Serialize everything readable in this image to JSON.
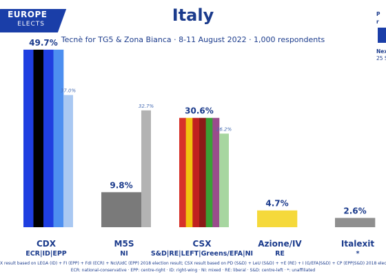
{
  "header": {
    "brand_line1": "EUROPE",
    "brand_line2": "ELECTS",
    "title": "Italy",
    "subtitle": "Tecnè for TG5 & Zona Bianca · 8-11 August 2022 · 1,000 respondents",
    "side_line1": "P",
    "side_line2": "r",
    "side_line3": "Nex",
    "side_line4": "25 S"
  },
  "footer": {
    "line1": "X result based on LEGA (ID) + FI (EPP) + FdI (ECR) + NcI/UdC (EPP) 2018 election result; CSX result based on PD (S&D) + LeU (S&D) + +E (RE) + I (G/EFA|S&D) + CP (EPP|S&D) 2018 electio",
    "line2": "ECR: national-conservative · EPP: centre-right · ID: right-wing · NI: mixed · RE: liberal · S&D: centre-left · *: unaffiliated"
  },
  "colors": {
    "brand_blue": "#1a3ea8",
    "title_blue": "#1b3b8c",
    "previous_result": "#b3b3b3"
  },
  "chart_data": {
    "type": "bar",
    "ylim": [
      0,
      52
    ],
    "groups": [
      {
        "name": "CDX",
        "group": "ECR|ID|EPP",
        "value": 49.7,
        "label": "49.7%",
        "previous": 37.0,
        "previous_label": "37.0%",
        "stripes": [
          "#1f3fe0",
          "#000000",
          "#1f3fe0",
          "#4d8ff0"
        ],
        "previous_color": "#a9c8f2"
      },
      {
        "name": "M5S",
        "group": "NI",
        "value": 9.8,
        "label": "9.8%",
        "previous": 32.7,
        "previous_label": "32.7%",
        "stripes": [
          "#7a7a7a"
        ],
        "previous_color": "#b3b3b3"
      },
      {
        "name": "CSX",
        "group": "S&D|RE|LEFT|Greens/EFA|NI",
        "value": 30.6,
        "label": "30.6%",
        "previous": 26.2,
        "previous_label": "26.2%",
        "stripes": [
          "#d7322a",
          "#f2c40f",
          "#c0211f",
          "#8c1a17",
          "#3aa035",
          "#9a4c8c"
        ],
        "previous_color": "#a7d6a0"
      },
      {
        "name": "Azione/IV",
        "group": "RE",
        "value": 4.7,
        "label": "4.7%",
        "previous": null,
        "previous_label": "",
        "stripes": [
          "#f5d93b"
        ],
        "previous_color": "#dddddd"
      },
      {
        "name": "Italexit",
        "group": "*",
        "value": 2.6,
        "label": "2.6%",
        "previous": null,
        "previous_label": "",
        "stripes": [
          "#8f8f8f"
        ],
        "previous_color": "#dddddd"
      }
    ]
  }
}
